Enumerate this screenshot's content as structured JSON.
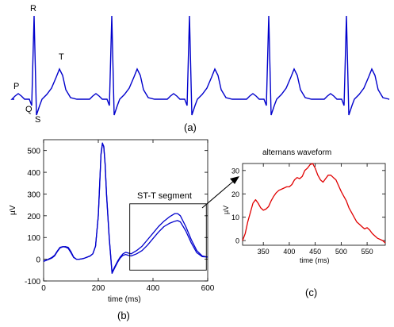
{
  "colors": {
    "ecg": "#0000cc",
    "alternans": "#e00000",
    "axis": "#000000"
  },
  "chart_data": [
    {
      "panel": "(a)",
      "type": "line",
      "wave_labels": [
        "P",
        "Q",
        "R",
        "S",
        "T"
      ],
      "beats": 5,
      "grid": false,
      "axes": false
    },
    {
      "panel": "(b)",
      "type": "line",
      "xlabel": "time (ms)",
      "ylabel": "µV",
      "xlim": [
        0,
        600
      ],
      "ylim": [
        -100,
        550
      ],
      "xticks": [
        0,
        200,
        400,
        600
      ],
      "yticks": [
        -100,
        0,
        100,
        200,
        300,
        400,
        500
      ],
      "annotation": "ST-T segment",
      "annotation_box_x": [
        315,
        595
      ],
      "annotation_box_y": [
        -50,
        255
      ],
      "series": [
        {
          "x": [
            0,
            10,
            20,
            30,
            40,
            50,
            60,
            70,
            80,
            90,
            100,
            110,
            120,
            130,
            140,
            150,
            160,
            170,
            180,
            190,
            200,
            205,
            210,
            215,
            220,
            225,
            230,
            240,
            250,
            260,
            270,
            280,
            290,
            300,
            310,
            320,
            340,
            360,
            380,
            400,
            420,
            440,
            460,
            480,
            490,
            500,
            520,
            540,
            560,
            580,
            600
          ],
          "values": [
            -10,
            -5,
            0,
            5,
            15,
            35,
            52,
            57,
            58,
            55,
            35,
            10,
            0,
            0,
            2,
            5,
            10,
            15,
            25,
            60,
            200,
            340,
            480,
            530,
            520,
            440,
            300,
            100,
            -60,
            -35,
            -10,
            10,
            25,
            32,
            28,
            25,
            40,
            60,
            90,
            120,
            150,
            175,
            195,
            210,
            210,
            200,
            150,
            90,
            40,
            15,
            10
          ]
        },
        {
          "x": [
            0,
            10,
            20,
            30,
            40,
            50,
            60,
            70,
            80,
            90,
            100,
            110,
            120,
            130,
            140,
            150,
            160,
            170,
            180,
            190,
            200,
            205,
            210,
            215,
            220,
            225,
            230,
            240,
            250,
            260,
            270,
            280,
            290,
            300,
            310,
            320,
            340,
            360,
            380,
            400,
            420,
            440,
            460,
            480,
            490,
            500,
            520,
            540,
            560,
            580,
            600
          ],
          "values": [
            -8,
            -4,
            2,
            8,
            18,
            38,
            55,
            58,
            56,
            50,
            30,
            8,
            0,
            0,
            2,
            5,
            10,
            15,
            25,
            60,
            200,
            345,
            485,
            535,
            518,
            435,
            295,
            95,
            -65,
            -40,
            -15,
            5,
            18,
            22,
            18,
            15,
            25,
            40,
            65,
            95,
            125,
            150,
            165,
            175,
            178,
            172,
            130,
            75,
            30,
            12,
            10
          ]
        }
      ]
    },
    {
      "panel": "(c)",
      "type": "line",
      "title": "alternans waveform",
      "xlabel": "time (ms)",
      "ylabel": "µV",
      "xlim": [
        310,
        585
      ],
      "ylim": [
        -2,
        33
      ],
      "xticks": [
        350,
        400,
        450,
        500,
        550
      ],
      "yticks": [
        0,
        10,
        20,
        30
      ],
      "series": [
        {
          "x": [
            310,
            315,
            320,
            325,
            330,
            335,
            340,
            345,
            350,
            355,
            360,
            365,
            370,
            375,
            380,
            385,
            390,
            395,
            400,
            405,
            410,
            415,
            420,
            425,
            430,
            435,
            440,
            445,
            450,
            455,
            460,
            465,
            470,
            475,
            480,
            485,
            490,
            495,
            500,
            505,
            510,
            515,
            520,
            525,
            530,
            535,
            540,
            545,
            550,
            555,
            560,
            565,
            570,
            575,
            580,
            585
          ],
          "values": [
            0,
            3,
            8,
            12,
            16,
            17.5,
            16,
            14,
            13,
            13.5,
            14.5,
            17,
            19,
            20.5,
            21.5,
            22,
            22.5,
            23,
            23,
            24,
            26,
            27,
            26.5,
            27.5,
            30,
            31,
            32.5,
            33,
            31,
            28,
            26,
            25,
            26.5,
            28,
            28,
            27,
            26,
            23.5,
            21,
            19,
            17,
            14,
            12,
            10,
            8,
            7,
            6,
            5,
            5.5,
            4.5,
            3,
            2,
            1,
            0.5,
            0,
            -1
          ]
        }
      ]
    }
  ],
  "labels": {
    "panel_a": "(a)",
    "panel_b": "(b)",
    "panel_c": "(c)",
    "wave_p": "P",
    "wave_q": "Q",
    "wave_r": "R",
    "wave_s": "S",
    "wave_t": "T",
    "b_xlabel": "time (ms)",
    "b_ylabel": "µV",
    "b_annotation": "ST-T segment",
    "c_title": "alternans waveform",
    "c_xlabel": "time (ms)",
    "c_ylabel": "µV"
  }
}
